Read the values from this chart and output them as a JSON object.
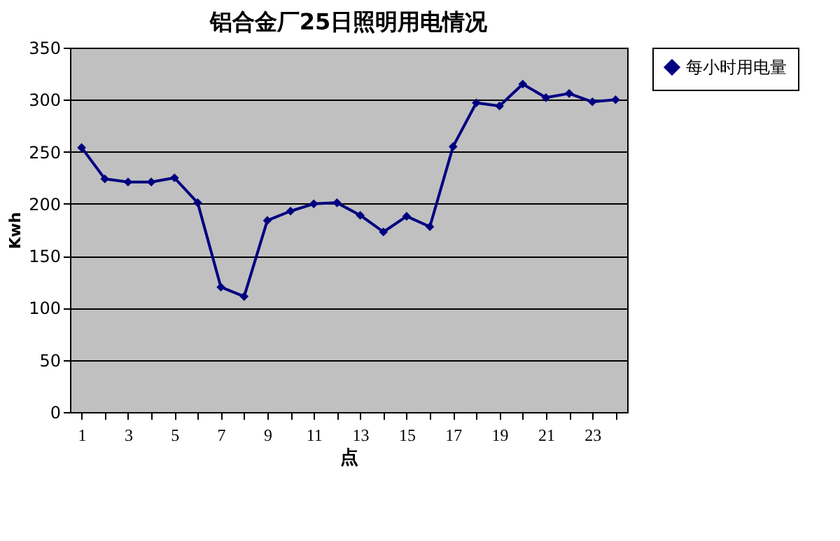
{
  "chart_data": {
    "type": "line",
    "title": "铝合金厂25日照明用电情况",
    "xlabel": "点",
    "ylabel": "Kwh",
    "x": [
      1,
      2,
      3,
      4,
      5,
      6,
      7,
      8,
      9,
      10,
      11,
      12,
      13,
      14,
      15,
      16,
      17,
      18,
      19,
      20,
      21,
      22,
      23,
      24
    ],
    "xlim": [
      0.5,
      24.5
    ],
    "xticks": [
      1,
      {
        "value": 2,
        "label": null
      },
      3,
      {
        "value": 4,
        "label": null
      },
      5,
      {
        "value": 6,
        "label": null
      },
      7,
      {
        "value": 8,
        "label": null
      },
      9,
      {
        "value": 10,
        "label": null
      },
      11,
      {
        "value": 12,
        "label": null
      },
      13,
      {
        "value": 14,
        "label": null
      },
      15,
      {
        "value": 16,
        "label": null
      },
      17,
      {
        "value": 18,
        "label": null
      },
      19,
      {
        "value": 20,
        "label": null
      },
      21,
      {
        "value": 22,
        "label": null
      },
      23,
      {
        "value": 24,
        "label": null
      }
    ],
    "series": [
      {
        "name": "每小时用电量",
        "color": "#000080",
        "values": [
          254,
          224,
          221,
          221,
          225,
          201,
          120,
          111,
          184,
          193,
          200,
          201,
          189,
          173,
          188,
          178,
          255,
          297,
          294,
          315,
          302,
          306,
          298,
          300
        ]
      }
    ],
    "ylim": [
      0,
      350
    ],
    "yticks": [
      0,
      50,
      100,
      150,
      200,
      250,
      300,
      350
    ],
    "grid": "y",
    "legend": "right",
    "marker": "diamond",
    "line_style": "solid"
  }
}
